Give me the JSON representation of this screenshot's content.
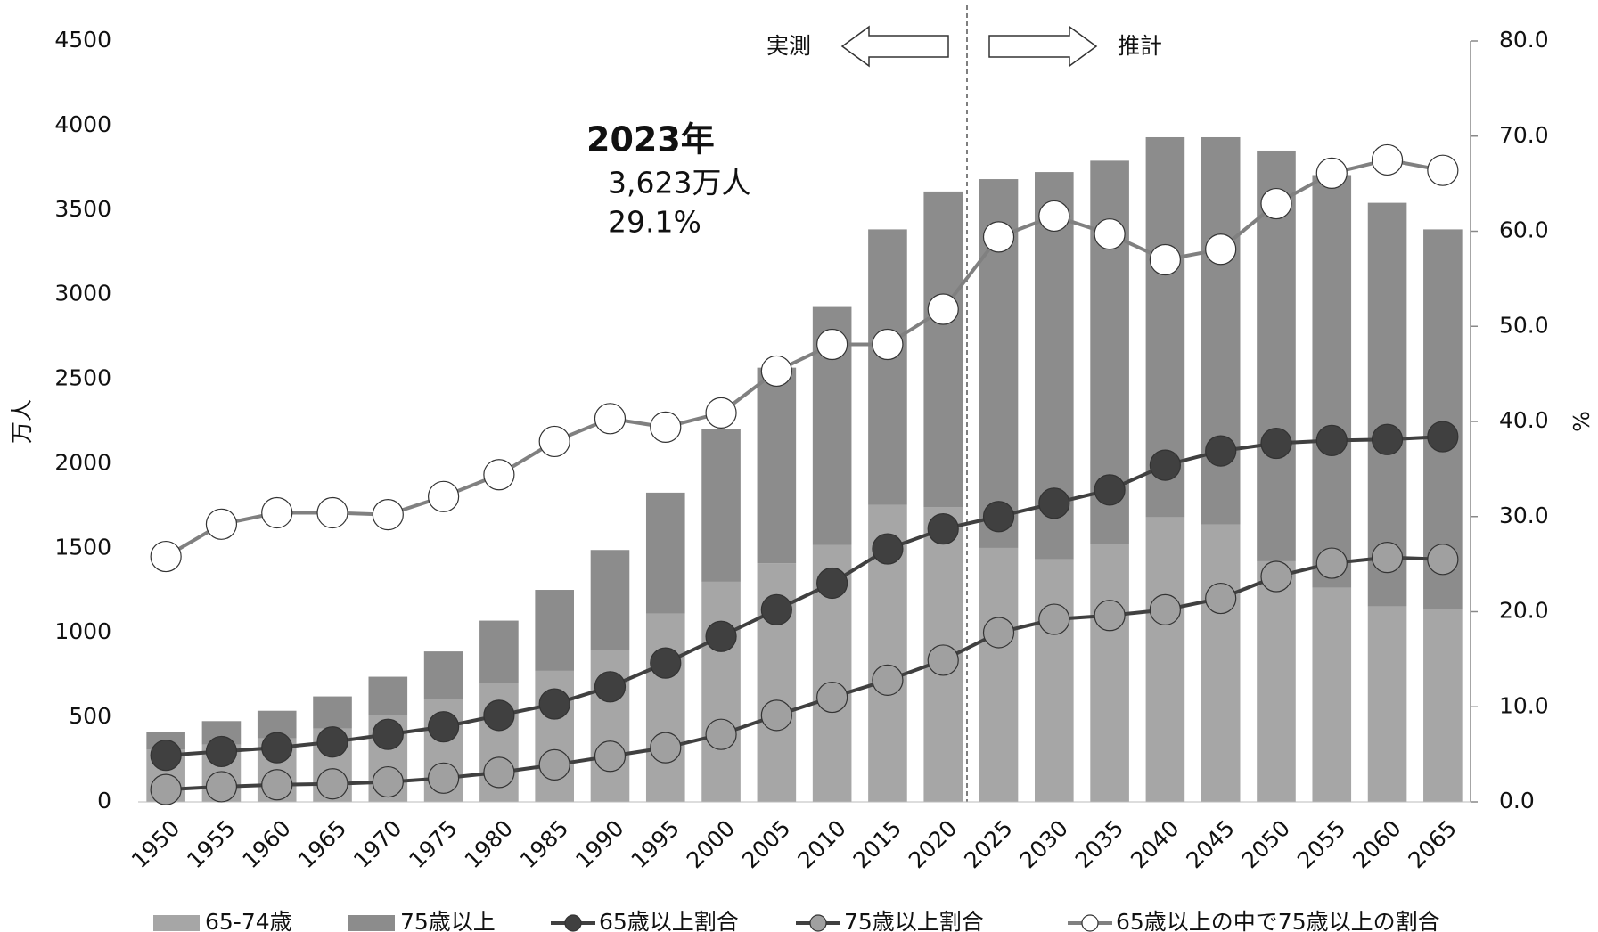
{
  "chart_data": {
    "type": "bar",
    "categories": [
      "1950",
      "1955",
      "1960",
      "1965",
      "1970",
      "1975",
      "1980",
      "1985",
      "1990",
      "1995",
      "2000",
      "2005",
      "2010",
      "2015",
      "2020",
      "2025",
      "2030",
      "2035",
      "2040",
      "2045",
      "2050",
      "2055",
      "2060",
      "2065"
    ],
    "ylabel": "万人",
    "y2label": "%",
    "ylim": [
      0,
      4500
    ],
    "yticks": [
      0,
      500,
      1000,
      1500,
      2000,
      2500,
      3000,
      3500,
      4000,
      4500
    ],
    "y2lim": [
      0,
      80
    ],
    "y2ticks": [
      {
        "value": 0,
        "label": "0.0"
      },
      {
        "value": 10,
        "label": "10.0"
      },
      {
        "value": 20,
        "label": "20.0"
      },
      {
        "value": 30,
        "label": "30.0"
      },
      {
        "value": 40,
        "label": "40.0"
      },
      {
        "value": 50,
        "label": "50.0"
      },
      {
        "value": 60,
        "label": "60.0"
      },
      {
        "value": 70,
        "label": "70.0"
      },
      {
        "value": 80,
        "label": "80.0"
      }
    ],
    "annotations": {
      "actual": "実測",
      "projection": "推計",
      "year": "2023年",
      "population": "3,623万人",
      "ratio": "29.1%"
    },
    "series": [
      {
        "name": "65-74歳",
        "type": "bar",
        "color": "#a6a6a6",
        "values": [
          309,
          339,
          376,
          435,
          516,
          606,
          703,
          775,
          896,
          1114,
          1302,
          1411,
          1520,
          1757,
          1744,
          1502,
          1435,
          1526,
          1684,
          1641,
          1423,
          1266,
          1157,
          1139
        ]
      },
      {
        "name": "75歳以上",
        "type": "bar",
        "color": "#8c8c8c",
        "values": [
          107,
          139,
          163,
          189,
          224,
          284,
          369,
          479,
          594,
          715,
          903,
          1157,
          1412,
          1629,
          1866,
          2181,
          2290,
          2266,
          2247,
          2290,
          2429,
          2441,
          2386,
          2247
        ]
      },
      {
        "name": "65歳以上割合",
        "type": "line",
        "axis": "y2",
        "color": "#404040",
        "marker": "#404040",
        "values": [
          4.9,
          5.3,
          5.7,
          6.3,
          7.1,
          7.9,
          9.1,
          10.3,
          12.1,
          14.6,
          17.4,
          20.2,
          23.0,
          26.6,
          28.7,
          30.0,
          31.4,
          32.8,
          35.4,
          36.9,
          37.7,
          38.0,
          38.1,
          38.4
        ]
      },
      {
        "name": "75歳以上割合",
        "type": "line",
        "axis": "y2",
        "color": "#404040",
        "marker": "#a0a0a0",
        "values": [
          1.3,
          1.6,
          1.8,
          1.9,
          2.1,
          2.5,
          3.1,
          3.9,
          4.8,
          5.7,
          7.1,
          9.1,
          11.0,
          12.8,
          14.9,
          17.8,
          19.2,
          19.6,
          20.2,
          21.4,
          23.7,
          25.1,
          25.7,
          25.5
        ]
      },
      {
        "name": "65歳以上の中で75歳以上の割合",
        "type": "line",
        "axis": "y2",
        "color": "#808080",
        "marker": "#ffffff",
        "values": [
          25.8,
          29.2,
          30.4,
          30.4,
          30.2,
          32.1,
          34.4,
          37.9,
          40.3,
          39.4,
          40.9,
          45.3,
          48.1,
          48.1,
          51.8,
          59.4,
          61.6,
          59.7,
          57.0,
          58.1,
          62.9,
          66.1,
          67.5,
          66.4
        ]
      }
    ]
  }
}
